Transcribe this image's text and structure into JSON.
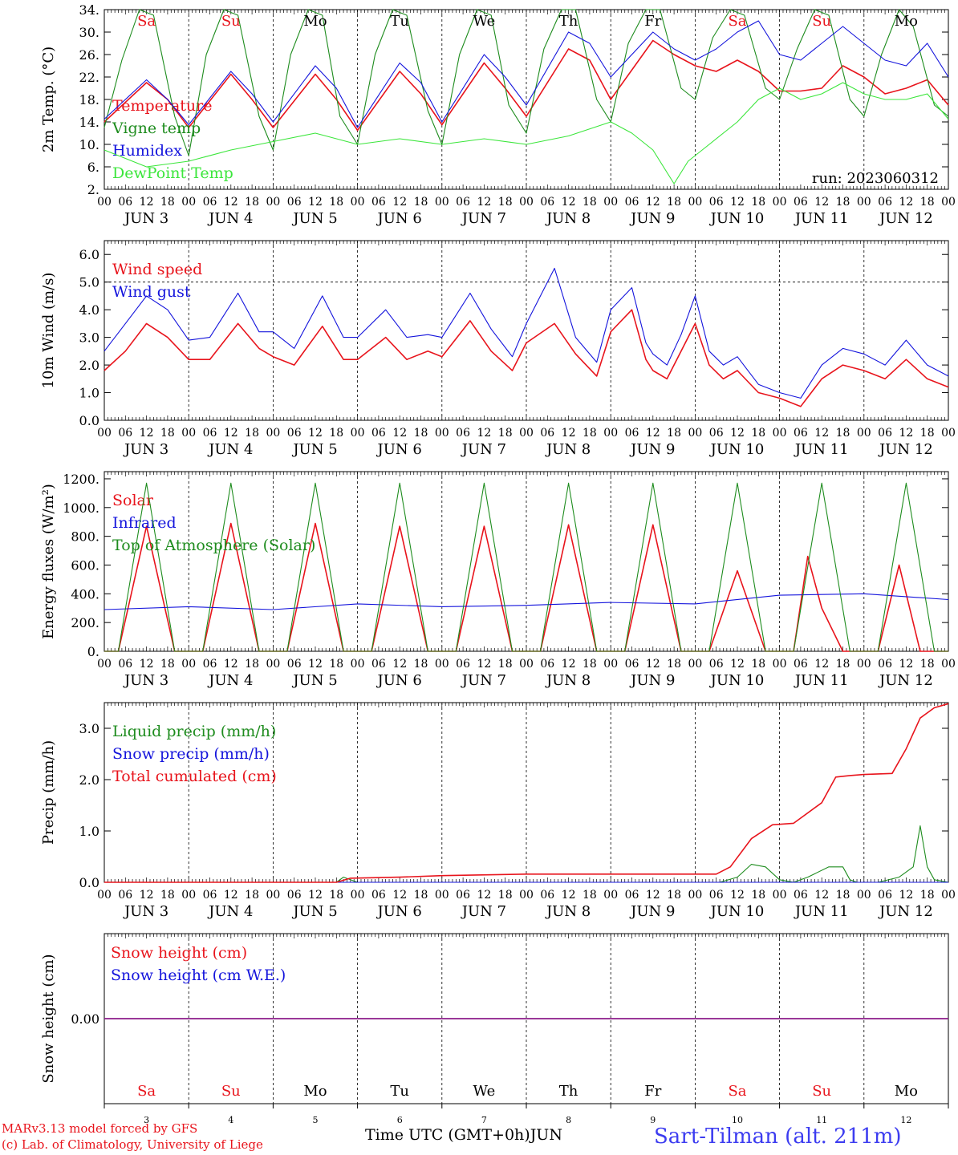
{
  "footer": {
    "credit_line1": "MARv3.13 model forced by GFS",
    "credit_line2": "(c) Lab. of Climatology, University of Liege",
    "xaxis_title": "Time UTC (GMT+0h)JUN",
    "station": "Sart-Tilman (alt. 211m)"
  },
  "hour_labels": [
    "00",
    "06",
    "12",
    "18"
  ],
  "day_labels": [
    "JUN  3",
    "JUN  4",
    "JUN  5",
    "JUN  6",
    "JUN  7",
    "JUN  8",
    "JUN  9",
    "JUN 10",
    "JUN 11",
    "JUN 12"
  ],
  "weekdays": [
    "Sa",
    "Su",
    "Mo",
    "Tu",
    "We",
    "Th",
    "Fr",
    "Sa",
    "Su",
    "Mo"
  ],
  "weekday_colors": [
    "#e8141c",
    "#e8141c",
    "#000000",
    "#000000",
    "#000000",
    "#000000",
    "#000000",
    "#e8141c",
    "#e8141c",
    "#000000"
  ],
  "day_numbers": [
    "3",
    "4",
    "5",
    "6",
    "7",
    "8",
    "9",
    "10",
    "11",
    "12"
  ],
  "colors": {
    "red": "#e8141c",
    "green": "#1e8c1e",
    "blue": "#1414dc",
    "light_green": "#3ce63c",
    "purple": "#7d1e9b"
  },
  "chart_data": [
    {
      "type": "line",
      "ylabel": "2m Temp. (°C)",
      "ylim": [
        2,
        34
      ],
      "yticks": [
        2,
        6,
        10,
        14,
        18,
        22,
        26,
        30,
        34
      ],
      "ytick_labels": [
        "2.",
        "6.",
        "10.",
        "14.",
        "18.",
        "22.",
        "26.",
        "30.",
        "34."
      ],
      "annotation": "run: 2023060312",
      "series": [
        {
          "name": "Temperature",
          "color": "red",
          "x": [
            0,
            12,
            18,
            24,
            36,
            42,
            48,
            60,
            66,
            72,
            84,
            90,
            96,
            108,
            114,
            120,
            132,
            138,
            144,
            156,
            162,
            168,
            174,
            180,
            186,
            192,
            198,
            204,
            210,
            216,
            222,
            228,
            234,
            240
          ],
          "y": [
            14,
            21,
            18,
            13,
            22.5,
            18,
            13,
            22.5,
            18,
            12.5,
            23,
            19,
            13.5,
            24.5,
            20,
            15,
            27,
            25,
            18,
            28.5,
            26,
            24,
            23,
            25,
            23,
            19.5,
            19.5,
            20,
            24,
            22,
            19,
            20,
            21.5,
            17
          ]
        },
        {
          "name": "Vigne temp",
          "color": "green",
          "x": [
            0,
            5,
            10,
            14,
            20,
            24,
            29,
            34,
            38,
            44,
            48,
            53,
            58,
            62,
            67,
            72,
            77,
            82,
            86,
            92,
            96,
            101,
            106,
            110,
            115,
            120,
            125,
            130,
            134,
            140,
            144,
            149,
            154,
            158,
            164,
            168,
            173,
            178,
            182,
            188,
            192,
            197,
            202,
            206,
            212,
            216,
            221,
            226,
            230,
            236,
            240
          ],
          "y": [
            13,
            25,
            34,
            33,
            15,
            8,
            26,
            34,
            33,
            15,
            9,
            26,
            34,
            33,
            15,
            10,
            26,
            34,
            33,
            16,
            10,
            26,
            34,
            33,
            17,
            12,
            27,
            34,
            34,
            18,
            14,
            28,
            34,
            34,
            20,
            18,
            29,
            34,
            33,
            20,
            18,
            27,
            34,
            33,
            18,
            15,
            26,
            34,
            31,
            17,
            15
          ]
        },
        {
          "name": "Humidex",
          "color": "blue",
          "x": [
            0,
            12,
            18,
            24,
            36,
            42,
            48,
            60,
            66,
            72,
            84,
            90,
            96,
            108,
            114,
            120,
            132,
            138,
            144,
            156,
            162,
            168,
            174,
            180,
            186,
            192,
            198,
            204,
            210,
            216,
            222,
            228,
            234,
            240
          ],
          "y": [
            14.5,
            21.5,
            18,
            13.5,
            23,
            19,
            14,
            24,
            20,
            13,
            24.5,
            21,
            14,
            26,
            22,
            17,
            30,
            28,
            22,
            30,
            27,
            25,
            27,
            30,
            32,
            26,
            25,
            28,
            31,
            28,
            25,
            24,
            28,
            22
          ]
        },
        {
          "name": "DewPoint Temp",
          "color": "light_green",
          "x": [
            0,
            12,
            24,
            36,
            48,
            60,
            72,
            84,
            96,
            108,
            120,
            132,
            144,
            150,
            156,
            160,
            162,
            166,
            170,
            180,
            186,
            192,
            198,
            204,
            210,
            216,
            222,
            228,
            234,
            240
          ],
          "y": [
            9,
            6,
            7,
            9,
            10.5,
            12,
            10,
            11,
            10,
            11,
            10,
            11.5,
            14,
            12,
            9,
            5,
            3,
            7,
            9,
            14,
            18,
            20,
            18,
            19,
            21,
            19,
            18,
            18,
            19,
            14.5
          ]
        }
      ]
    },
    {
      "type": "line",
      "ylabel": "10m Wind (m/s)",
      "ylim": [
        0,
        6.5
      ],
      "yticks": [
        0,
        1,
        2,
        3,
        4,
        5,
        6
      ],
      "ytick_labels": [
        "0.0",
        "1.0",
        "2.0",
        "3.0",
        "4.0",
        "5.0",
        "6.0"
      ],
      "dashed_y": 5.0,
      "series": [
        {
          "name": "Wind speed",
          "color": "red",
          "x": [
            0,
            6,
            12,
            18,
            24,
            30,
            38,
            44,
            48,
            54,
            62,
            68,
            72,
            80,
            86,
            92,
            96,
            104,
            110,
            116,
            120,
            128,
            134,
            140,
            144,
            150,
            154,
            156,
            160,
            164,
            168,
            172,
            176,
            180,
            186,
            192,
            198,
            204,
            210,
            216,
            222,
            228,
            234,
            240
          ],
          "y": [
            1.8,
            2.5,
            3.5,
            3,
            2.2,
            2.2,
            3.5,
            2.6,
            2.3,
            2,
            3.4,
            2.2,
            2.2,
            3,
            2.2,
            2.5,
            2.3,
            3.6,
            2.5,
            1.8,
            2.8,
            3.5,
            2.4,
            1.6,
            3.2,
            4,
            2.2,
            1.8,
            1.5,
            2.5,
            3.5,
            2,
            1.5,
            1.8,
            1,
            0.8,
            0.5,
            1.5,
            2,
            1.8,
            1.5,
            2.2,
            1.5,
            1.2
          ]
        },
        {
          "name": "Wind gust",
          "color": "blue",
          "x": [
            0,
            6,
            12,
            18,
            24,
            30,
            38,
            44,
            48,
            54,
            62,
            68,
            72,
            80,
            86,
            92,
            96,
            104,
            110,
            116,
            120,
            128,
            134,
            140,
            144,
            150,
            154,
            156,
            160,
            164,
            168,
            172,
            176,
            180,
            186,
            192,
            198,
            204,
            210,
            216,
            222,
            228,
            234,
            240
          ],
          "y": [
            2.5,
            3.5,
            4.5,
            4,
            2.9,
            3,
            4.6,
            3.2,
            3.2,
            2.6,
            4.5,
            3,
            3,
            4,
            3,
            3.1,
            3,
            4.6,
            3.3,
            2.3,
            3.5,
            5.5,
            3,
            2.1,
            4,
            4.8,
            2.8,
            2.4,
            2,
            3.1,
            4.5,
            2.5,
            2,
            2.3,
            1.3,
            1,
            0.8,
            2,
            2.6,
            2.4,
            2,
            2.9,
            2,
            1.6
          ]
        }
      ]
    },
    {
      "type": "line",
      "ylabel": "Energy fluxes (W/m²)",
      "ylim": [
        0,
        1250
      ],
      "yticks": [
        0,
        200,
        400,
        600,
        800,
        1000,
        1200
      ],
      "ytick_labels": [
        "0.",
        "200.",
        "400.",
        "600.",
        "800.",
        "1000.",
        "1200."
      ],
      "series": [
        {
          "name": "Solar",
          "color": "red",
          "x": [
            0,
            4,
            12,
            20,
            24,
            28,
            36,
            44,
            48,
            52,
            60,
            68,
            72,
            76,
            84,
            92,
            96,
            100,
            108,
            116,
            120,
            124,
            132,
            140,
            144,
            148,
            156,
            164,
            168,
            172,
            180,
            188,
            192,
            196,
            200,
            204,
            210,
            216,
            220,
            226,
            232,
            240
          ],
          "y": [
            0,
            0,
            870,
            0,
            0,
            0,
            890,
            0,
            0,
            0,
            890,
            0,
            0,
            0,
            870,
            0,
            0,
            0,
            870,
            0,
            0,
            0,
            880,
            0,
            0,
            0,
            880,
            0,
            0,
            0,
            560,
            0,
            0,
            0,
            660,
            300,
            0,
            0,
            0,
            600,
            0,
            0
          ]
        },
        {
          "name": "Infrared",
          "color": "blue",
          "x": [
            0,
            24,
            48,
            72,
            96,
            120,
            144,
            168,
            192,
            216,
            240
          ],
          "y": [
            290,
            310,
            290,
            330,
            310,
            320,
            340,
            330,
            390,
            400,
            360
          ]
        },
        {
          "name": "Top of Atmosphere (Solar)",
          "color": "green",
          "x": [
            0,
            4,
            12,
            20,
            24,
            28,
            36,
            44,
            48,
            52,
            60,
            68,
            72,
            76,
            84,
            92,
            96,
            100,
            108,
            116,
            120,
            124,
            132,
            140,
            144,
            148,
            156,
            164,
            168,
            172,
            180,
            188,
            192,
            196,
            204,
            212,
            216,
            220,
            228,
            236,
            240
          ],
          "y": [
            0,
            0,
            1170,
            0,
            0,
            0,
            1170,
            0,
            0,
            0,
            1170,
            0,
            0,
            0,
            1170,
            0,
            0,
            0,
            1170,
            0,
            0,
            0,
            1170,
            0,
            0,
            0,
            1170,
            0,
            0,
            0,
            1170,
            0,
            0,
            0,
            1170,
            0,
            0,
            0,
            1170,
            0,
            0
          ]
        }
      ]
    },
    {
      "type": "line",
      "ylabel": "Precip (mm/h)",
      "ylim": [
        0,
        3.5
      ],
      "yticks": [
        0,
        1,
        2,
        3
      ],
      "ytick_labels": [
        "0.0",
        "1.0",
        "2.0",
        "3.0"
      ],
      "series": [
        {
          "name": "Liquid precip (mm/h)",
          "color": "green",
          "x": [
            0,
            66,
            68,
            72,
            175,
            180,
            184,
            188,
            192,
            196,
            200,
            206,
            210,
            212,
            214,
            216,
            220,
            226,
            230,
            232,
            234,
            236,
            240
          ],
          "y": [
            0,
            0,
            0.1,
            0,
            0,
            0.1,
            0.35,
            0.3,
            0.05,
            0,
            0.1,
            0.3,
            0.3,
            0.05,
            0,
            0,
            0,
            0.1,
            0.3,
            1.1,
            0.3,
            0.05,
            0
          ]
        },
        {
          "name": "Snow precip (mm/h)",
          "color": "blue",
          "x": [
            0,
            240
          ],
          "y": [
            0,
            0
          ]
        },
        {
          "name": "Total cumulated (cm)",
          "color": "red",
          "x": [
            0,
            66,
            70,
            84,
            96,
            120,
            150,
            174,
            178,
            184,
            190,
            196,
            204,
            208,
            212,
            216,
            224,
            228,
            232,
            236,
            240
          ],
          "y": [
            0,
            0,
            0.08,
            0.1,
            0.13,
            0.16,
            0.16,
            0.16,
            0.3,
            0.85,
            1.12,
            1.15,
            1.55,
            2.05,
            2.08,
            2.1,
            2.12,
            2.6,
            3.2,
            3.4,
            3.48
          ]
        }
      ]
    },
    {
      "type": "line",
      "ylabel": "Snow height (cm)",
      "ylim": [
        -1,
        1
      ],
      "yticks": [
        0
      ],
      "ytick_labels": [
        "0.00"
      ],
      "series": [
        {
          "name": "Snow height (cm)",
          "color": "red",
          "x": [
            0,
            240
          ],
          "y": [
            0,
            0
          ]
        },
        {
          "name": "Snow height (cm W.E.)",
          "color": "blue",
          "x": [
            0,
            240
          ],
          "y": [
            0,
            0
          ]
        }
      ]
    }
  ]
}
